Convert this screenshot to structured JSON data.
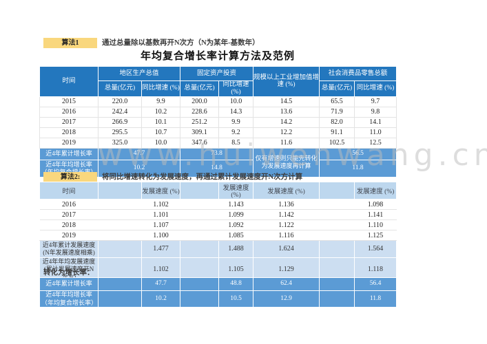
{
  "algo1": {
    "label": "算法1",
    "description": "通过总量除以基数再开N次方（N为某年-基数年）"
  },
  "title": "年均复合增长率计算方法及范例",
  "algo2": {
    "label": "算法2:",
    "description": "将同比增速转化为发展速度，再通过累计发展速度开N次方计算"
  },
  "convert_label": "转化为增长率：",
  "watermark": "www.huiwenwang.cn",
  "colors": {
    "header_blue": "#2377BE",
    "summary_blue": "#5B9BD5",
    "light_blue_header": "#BDD7EE",
    "light_blue_row": "#CCDEF1",
    "highlight_yellow": "#F9D77D",
    "grid_gray": "#E3E3E3"
  },
  "table1": {
    "header": {
      "time": "时间",
      "groups": [
        "地区生产总值",
        "固定资产投资",
        "规模以上工业增加值增速 (%)",
        "社会消费品零售总额"
      ],
      "sub": [
        "总量(亿元)",
        "同比增速 (%)",
        "总量(亿元)",
        "同比增速 (%)",
        "总量(亿元)",
        "同比增速 (%)"
      ]
    },
    "rows": [
      [
        "2015",
        "220.0",
        "9.9",
        "200.0",
        "10.0",
        "14.5",
        "65.5",
        "9.7"
      ],
      [
        "2016",
        "242.4",
        "10.2",
        "228.6",
        "14.3",
        "13.6",
        "71.9",
        "9.8"
      ],
      [
        "2017",
        "266.9",
        "10.1",
        "251.2",
        "9.9",
        "14.2",
        "82.0",
        "14.1"
      ],
      [
        "2018",
        "295.5",
        "10.7",
        "309.1",
        "9.2",
        "12.2",
        "91.1",
        "11.0"
      ],
      [
        "2019",
        "325.0",
        "10.0",
        "347.6",
        "8.5",
        "11.6",
        "102.5",
        "12.5"
      ]
    ],
    "summary": {
      "row1_label": "近4年累计增长率",
      "row1_values": [
        "47.7",
        "73.8",
        "56.5"
      ],
      "row2_label": "近4年年均增长率（年均复合增长率）",
      "row2_values": [
        "10.2",
        "14.8",
        "11.8"
      ],
      "note": "仅有增速则只能先转化为发展速度再计算"
    }
  },
  "table2": {
    "header": [
      "时间",
      "发展速度 (%)",
      "发展速度 (%)",
      "发展速度 (%)",
      "发展速度 (%)"
    ],
    "rows": [
      [
        "2016",
        "1.102",
        "1.143",
        "1.136",
        "1.098"
      ],
      [
        "2017",
        "1.101",
        "1.099",
        "1.142",
        "1.141"
      ],
      [
        "2018",
        "1.107",
        "1.092",
        "1.122",
        "1.110"
      ],
      [
        "2019",
        "1.100",
        "1.085",
        "1.116",
        "1.125"
      ]
    ],
    "summary": [
      [
        "近4年累计发展速度(N年发展速度相乘)",
        "1.477",
        "1.488",
        "1.624",
        "1.564"
      ],
      [
        "近4年年均发展速度(累计发展速度开N次方)",
        "1.102",
        "1.105",
        "1.129",
        "1.118"
      ]
    ]
  },
  "table3": {
    "rows": [
      [
        "近4年累计增长率",
        "47.7",
        "48.8",
        "62.4",
        "56.4"
      ],
      [
        "近4年年均增长率（年均复合增长率）",
        "10.2",
        "10.5",
        "12.9",
        "11.8"
      ]
    ]
  }
}
